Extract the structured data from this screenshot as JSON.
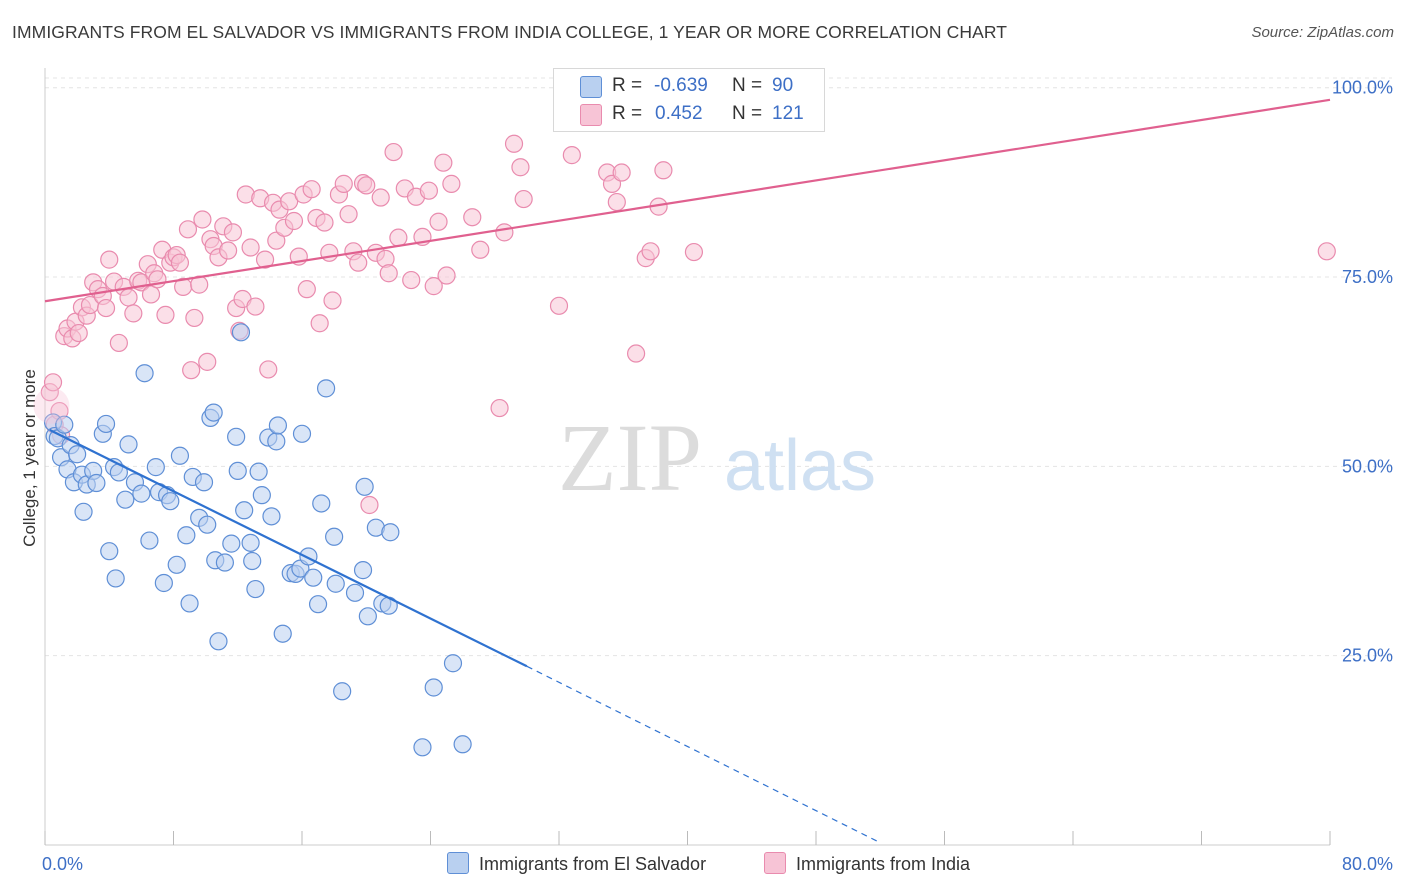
{
  "title": "IMMIGRANTS FROM EL SALVADOR VS IMMIGRANTS FROM INDIA COLLEGE, 1 YEAR OR MORE CORRELATION CHART",
  "source": "Source: ZipAtlas.com",
  "watermark": {
    "zip": "ZIP",
    "atlas": "atlas"
  },
  "legend": {
    "rows": [
      {
        "r_label": "R =",
        "r_value": "-0.639",
        "n_label": "N =",
        "n_value": "90"
      },
      {
        "r_label": "R =",
        "r_value": "0.452",
        "n_label": "N =",
        "n_value": "121"
      }
    ]
  },
  "bottom_legend": [
    "Immigrants from El Salvador",
    "Immigrants from India"
  ],
  "colors": {
    "blue_fill": "#b9d0f0",
    "blue_stroke": "#5f8fd6",
    "blue_line": "#2f72d0",
    "pink_fill": "#f7c4d6",
    "pink_stroke": "#e98bae",
    "pink_line": "#e0608f",
    "axis_text": "#3d6fc6",
    "grid": "#e4e4e4"
  },
  "chart_data": {
    "type": "scatter",
    "title": "IMMIGRANTS FROM EL SALVADOR VS IMMIGRANTS FROM INDIA COLLEGE, 1 YEAR OR MORE CORRELATION CHART",
    "xlabel": "",
    "ylabel": "College, 1 year or more",
    "xlim": [
      0,
      80
    ],
    "ylim": [
      0,
      103
    ],
    "x_tick_labels": [
      "0.0%",
      "80.0%"
    ],
    "y_ticks": [
      25,
      50,
      75,
      100
    ],
    "y_tick_labels": [
      "25.0%",
      "50.0%",
      "75.0%",
      "100.0%"
    ],
    "grid": true,
    "legend_position": "top-center",
    "series": [
      {
        "name": "Immigrants from El Salvador",
        "r": -0.639,
        "n": 90,
        "trend": {
          "x0": 0.3,
          "y0": 54.8,
          "x1": 30,
          "y1": 23.6,
          "dashed_to_x": 52,
          "dashed_to_y": 0.3
        },
        "points": [
          [
            0.5,
            55.8
          ],
          [
            0.6,
            54.0
          ],
          [
            0.8,
            53.7
          ],
          [
            1.0,
            51.2
          ],
          [
            1.2,
            55.5
          ],
          [
            1.4,
            49.6
          ],
          [
            1.6,
            52.8
          ],
          [
            1.8,
            47.9
          ],
          [
            2.0,
            51.6
          ],
          [
            2.3,
            48.9
          ],
          [
            2.4,
            44.0
          ],
          [
            2.6,
            47.6
          ],
          [
            3.0,
            49.4
          ],
          [
            3.2,
            47.8
          ],
          [
            3.6,
            54.3
          ],
          [
            3.8,
            55.6
          ],
          [
            4.0,
            38.8
          ],
          [
            4.3,
            49.9
          ],
          [
            4.4,
            35.2
          ],
          [
            4.6,
            49.2
          ],
          [
            5.0,
            45.6
          ],
          [
            5.2,
            52.9
          ],
          [
            5.6,
            47.9
          ],
          [
            6.0,
            46.4
          ],
          [
            6.2,
            62.3
          ],
          [
            6.5,
            40.2
          ],
          [
            6.9,
            49.9
          ],
          [
            7.1,
            46.6
          ],
          [
            7.4,
            34.6
          ],
          [
            7.6,
            46.2
          ],
          [
            7.8,
            45.4
          ],
          [
            8.2,
            37.0
          ],
          [
            8.4,
            51.4
          ],
          [
            8.8,
            40.9
          ],
          [
            9.0,
            31.9
          ],
          [
            9.2,
            48.6
          ],
          [
            9.6,
            43.2
          ],
          [
            9.9,
            47.9
          ],
          [
            10.1,
            42.3
          ],
          [
            10.3,
            56.4
          ],
          [
            10.5,
            57.1
          ],
          [
            10.6,
            37.6
          ],
          [
            10.8,
            26.9
          ],
          [
            11.2,
            37.3
          ],
          [
            11.6,
            39.8
          ],
          [
            11.9,
            53.9
          ],
          [
            12.0,
            49.4
          ],
          [
            12.2,
            67.7
          ],
          [
            12.4,
            44.2
          ],
          [
            12.8,
            39.9
          ],
          [
            12.9,
            37.5
          ],
          [
            13.1,
            33.8
          ],
          [
            13.3,
            49.3
          ],
          [
            13.5,
            46.2
          ],
          [
            13.9,
            53.8
          ],
          [
            14.1,
            43.4
          ],
          [
            14.4,
            53.3
          ],
          [
            14.5,
            55.4
          ],
          [
            14.8,
            27.9
          ],
          [
            15.3,
            35.9
          ],
          [
            15.6,
            35.8
          ],
          [
            15.9,
            36.5
          ],
          [
            16.0,
            54.3
          ],
          [
            16.4,
            38.1
          ],
          [
            16.7,
            35.3
          ],
          [
            17.0,
            31.8
          ],
          [
            17.2,
            45.1
          ],
          [
            17.5,
            60.3
          ],
          [
            18.0,
            40.7
          ],
          [
            18.1,
            34.5
          ],
          [
            18.5,
            20.3
          ],
          [
            19.3,
            33.3
          ],
          [
            19.8,
            36.3
          ],
          [
            19.9,
            47.3
          ],
          [
            20.1,
            30.2
          ],
          [
            20.6,
            41.9
          ],
          [
            21.0,
            31.9
          ],
          [
            21.4,
            31.6
          ],
          [
            21.5,
            41.3
          ],
          [
            23.5,
            12.9
          ],
          [
            24.2,
            20.8
          ],
          [
            25.4,
            24.0
          ],
          [
            26.0,
            13.3
          ]
        ]
      },
      {
        "name": "Immigrants from India",
        "r": 0.452,
        "n": 121,
        "trend": {
          "x0": 0,
          "y0": 71.8,
          "x1": 80,
          "y1": 98.4
        },
        "points": [
          [
            0.3,
            59.8
          ],
          [
            0.5,
            61.1
          ],
          [
            0.6,
            55.5
          ],
          [
            0.9,
            57.3
          ],
          [
            1.0,
            54.1
          ],
          [
            1.2,
            67.2
          ],
          [
            1.4,
            68.2
          ],
          [
            1.7,
            66.9
          ],
          [
            1.9,
            69.1
          ],
          [
            2.1,
            67.6
          ],
          [
            2.3,
            71.0
          ],
          [
            2.6,
            69.9
          ],
          [
            2.8,
            71.3
          ],
          [
            3.0,
            74.3
          ],
          [
            3.3,
            73.4
          ],
          [
            3.6,
            72.5
          ],
          [
            3.8,
            70.9
          ],
          [
            4.0,
            77.3
          ],
          [
            4.3,
            74.4
          ],
          [
            4.6,
            66.3
          ],
          [
            4.9,
            73.7
          ],
          [
            5.2,
            72.3
          ],
          [
            5.5,
            70.2
          ],
          [
            5.8,
            74.5
          ],
          [
            6.0,
            74.3
          ],
          [
            6.4,
            76.7
          ],
          [
            6.6,
            72.7
          ],
          [
            6.8,
            75.5
          ],
          [
            7.0,
            74.7
          ],
          [
            7.3,
            78.6
          ],
          [
            7.5,
            70.0
          ],
          [
            7.8,
            76.9
          ],
          [
            8.0,
            77.6
          ],
          [
            8.2,
            77.9
          ],
          [
            8.4,
            76.9
          ],
          [
            8.6,
            73.7
          ],
          [
            8.9,
            81.3
          ],
          [
            9.1,
            62.7
          ],
          [
            9.3,
            69.6
          ],
          [
            9.6,
            74.0
          ],
          [
            9.8,
            82.6
          ],
          [
            10.1,
            63.8
          ],
          [
            10.3,
            80.0
          ],
          [
            10.5,
            79.1
          ],
          [
            10.8,
            77.6
          ],
          [
            11.1,
            81.7
          ],
          [
            11.4,
            78.5
          ],
          [
            11.7,
            80.9
          ],
          [
            11.9,
            70.9
          ],
          [
            12.1,
            67.9
          ],
          [
            12.3,
            72.1
          ],
          [
            12.5,
            85.9
          ],
          [
            12.8,
            78.9
          ],
          [
            13.1,
            71.1
          ],
          [
            13.4,
            85.4
          ],
          [
            13.7,
            77.3
          ],
          [
            13.9,
            62.8
          ],
          [
            14.2,
            84.8
          ],
          [
            14.4,
            79.8
          ],
          [
            14.6,
            83.9
          ],
          [
            14.9,
            81.5
          ],
          [
            15.2,
            85.0
          ],
          [
            15.5,
            82.4
          ],
          [
            15.8,
            77.7
          ],
          [
            16.1,
            85.9
          ],
          [
            16.3,
            73.4
          ],
          [
            16.6,
            86.6
          ],
          [
            16.9,
            82.8
          ],
          [
            17.1,
            68.9
          ],
          [
            17.4,
            82.2
          ],
          [
            17.7,
            78.2
          ],
          [
            17.9,
            71.9
          ],
          [
            18.3,
            85.9
          ],
          [
            18.6,
            87.3
          ],
          [
            18.9,
            83.3
          ],
          [
            19.2,
            78.4
          ],
          [
            19.5,
            76.9
          ],
          [
            19.8,
            87.4
          ],
          [
            20.0,
            87.1
          ],
          [
            20.2,
            44.9
          ],
          [
            20.6,
            78.2
          ],
          [
            20.9,
            85.5
          ],
          [
            21.2,
            77.4
          ],
          [
            21.4,
            75.5
          ],
          [
            21.7,
            91.5
          ],
          [
            22.0,
            80.2
          ],
          [
            22.4,
            86.7
          ],
          [
            22.8,
            74.6
          ],
          [
            23.1,
            85.6
          ],
          [
            23.5,
            80.3
          ],
          [
            23.9,
            86.4
          ],
          [
            24.2,
            73.8
          ],
          [
            24.5,
            82.3
          ],
          [
            24.8,
            90.1
          ],
          [
            25.0,
            75.2
          ],
          [
            25.3,
            87.3
          ],
          [
            26.6,
            82.9
          ],
          [
            27.1,
            78.6
          ],
          [
            28.3,
            57.7
          ],
          [
            28.6,
            80.9
          ],
          [
            29.2,
            92.6
          ],
          [
            29.6,
            89.5
          ],
          [
            29.8,
            85.3
          ],
          [
            32.0,
            71.2
          ],
          [
            32.8,
            91.1
          ],
          [
            35.0,
            88.8
          ],
          [
            35.3,
            87.3
          ],
          [
            35.6,
            84.9
          ],
          [
            35.9,
            88.8
          ],
          [
            36.8,
            64.9
          ],
          [
            37.4,
            77.5
          ],
          [
            37.7,
            78.4
          ],
          [
            38.2,
            84.3
          ],
          [
            38.5,
            89.1
          ],
          [
            40.4,
            78.3
          ],
          [
            79.8,
            78.4
          ]
        ]
      }
    ]
  }
}
